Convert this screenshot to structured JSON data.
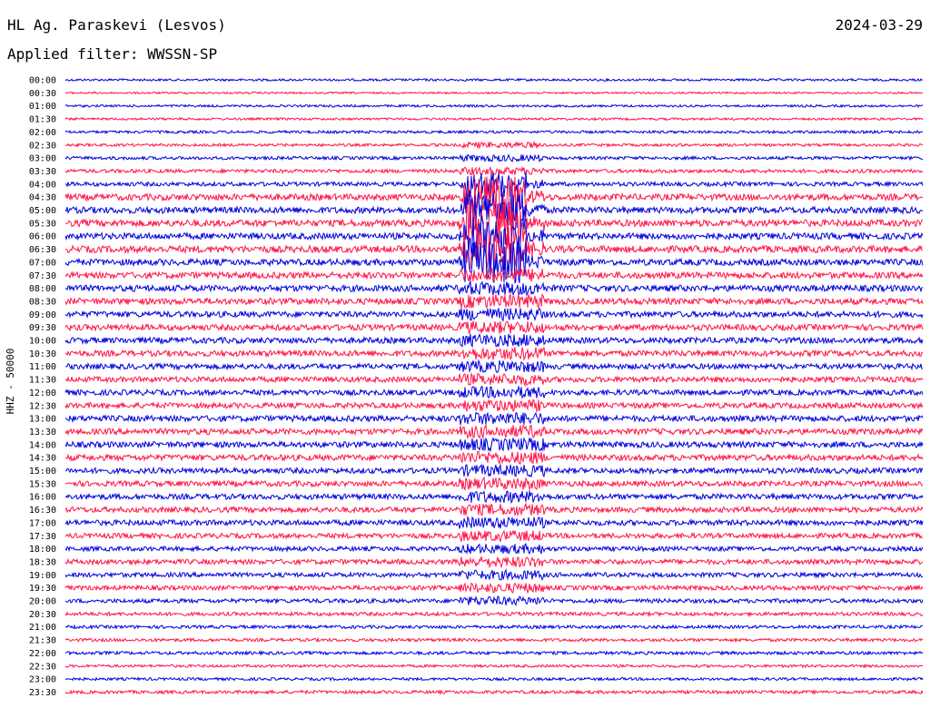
{
  "header": {
    "station": "HL Ag. Paraskevi (Lesvos)",
    "date": "2024-03-29",
    "filter": "Applied filter: WWSSN-SP"
  },
  "chart_data": {
    "type": "line",
    "title": "HL Ag. Paraskevi (Lesvos)",
    "ylabel": "HHZ - 50000",
    "trace_colors": [
      "#0000dd",
      "#ff1447"
    ],
    "rows": [
      "00:00",
      "00:30",
      "01:00",
      "01:30",
      "02:00",
      "02:30",
      "03:00",
      "03:30",
      "04:00",
      "04:30",
      "05:00",
      "05:30",
      "06:00",
      "06:30",
      "07:00",
      "07:30",
      "08:00",
      "08:30",
      "09:00",
      "09:30",
      "10:00",
      "10:30",
      "11:00",
      "11:30",
      "12:00",
      "12:30",
      "13:00",
      "13:30",
      "14:00",
      "14:30",
      "15:00",
      "15:30",
      "16:00",
      "16:30",
      "17:00",
      "17:30",
      "18:00",
      "18:30",
      "19:00",
      "19:30",
      "20:00",
      "20:30",
      "21:00",
      "21:30",
      "22:00",
      "22:30",
      "23:00",
      "23:30"
    ],
    "row_noise": [
      0.25,
      0.2,
      0.25,
      0.25,
      0.3,
      0.3,
      0.35,
      0.4,
      0.45,
      0.7,
      0.7,
      0.75,
      0.7,
      0.75,
      0.7,
      0.7,
      0.7,
      0.7,
      0.65,
      0.65,
      0.65,
      0.65,
      0.6,
      0.6,
      0.6,
      0.6,
      0.65,
      0.65,
      0.65,
      0.65,
      0.6,
      0.6,
      0.6,
      0.6,
      0.6,
      0.55,
      0.5,
      0.55,
      0.5,
      0.5,
      0.45,
      0.4,
      0.35,
      0.35,
      0.35,
      0.3,
      0.3,
      0.35
    ]
  }
}
